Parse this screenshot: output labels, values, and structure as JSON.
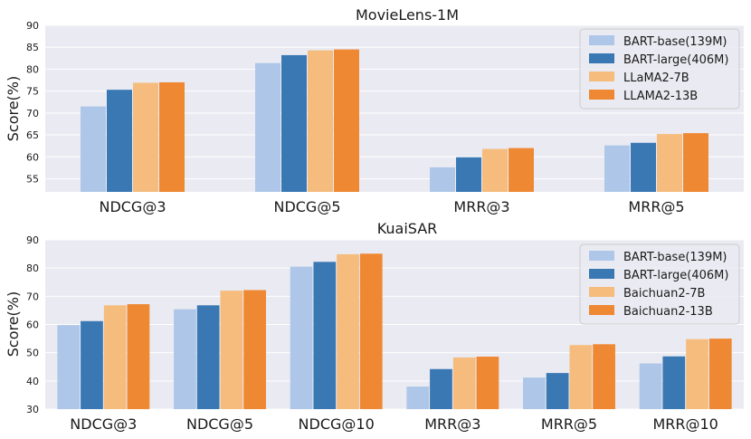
{
  "figure": {
    "charts": [
      {
        "title": "MovieLens-1M",
        "ylabel": "Score(%)"
      },
      {
        "title": "KuaiSAR",
        "ylabel": "Score(%)"
      }
    ]
  },
  "colors": {
    "background": "#EAEAF2",
    "grid": "#FFFFFF",
    "series": [
      "#AEC7E8",
      "#3A78B4",
      "#F5BC7D",
      "#EF8833"
    ]
  },
  "chart_data": [
    {
      "type": "bar",
      "title": "MovieLens-1M",
      "xlabel": "",
      "ylabel": "Score(%)",
      "ylim": [
        52,
        90
      ],
      "yticks": [
        55,
        60,
        65,
        70,
        75,
        80,
        85,
        90
      ],
      "grid": true,
      "legend": "top-right",
      "categories": [
        "NDCG@3",
        "NDCG@5",
        "MRR@3",
        "MRR@5"
      ],
      "series": [
        {
          "name": "BART-base(139M)",
          "values": [
            71.5,
            81.4,
            57.6,
            62.6
          ]
        },
        {
          "name": "BART-large(406M)",
          "values": [
            75.3,
            83.2,
            59.9,
            63.2
          ]
        },
        {
          "name": "LLaMA2-7B",
          "values": [
            76.9,
            84.3,
            61.8,
            65.2
          ]
        },
        {
          "name": "LLAMA2-13B",
          "values": [
            77.0,
            84.5,
            62.0,
            65.4
          ]
        }
      ]
    },
    {
      "type": "bar",
      "title": "KuaiSAR",
      "xlabel": "",
      "ylabel": "Score(%)",
      "ylim": [
        30,
        90
      ],
      "yticks": [
        30,
        40,
        50,
        60,
        70,
        80,
        90
      ],
      "grid": true,
      "legend": "top-right",
      "categories": [
        "NDCG@3",
        "NDCG@5",
        "NDCG@10",
        "MRR@3",
        "MRR@5",
        "MRR@10"
      ],
      "series": [
        {
          "name": "BART-base(139M)",
          "values": [
            59.8,
            65.4,
            80.5,
            38.0,
            41.2,
            46.2
          ]
        },
        {
          "name": "BART-large(406M)",
          "values": [
            61.2,
            66.8,
            82.2,
            44.2,
            42.8,
            48.7
          ]
        },
        {
          "name": "Baichuan2-7B",
          "values": [
            66.8,
            72.0,
            84.9,
            48.3,
            52.7,
            54.8
          ]
        },
        {
          "name": "Baichuan2-13B",
          "values": [
            67.2,
            72.2,
            85.1,
            48.6,
            53.0,
            55.0
          ]
        }
      ]
    }
  ]
}
